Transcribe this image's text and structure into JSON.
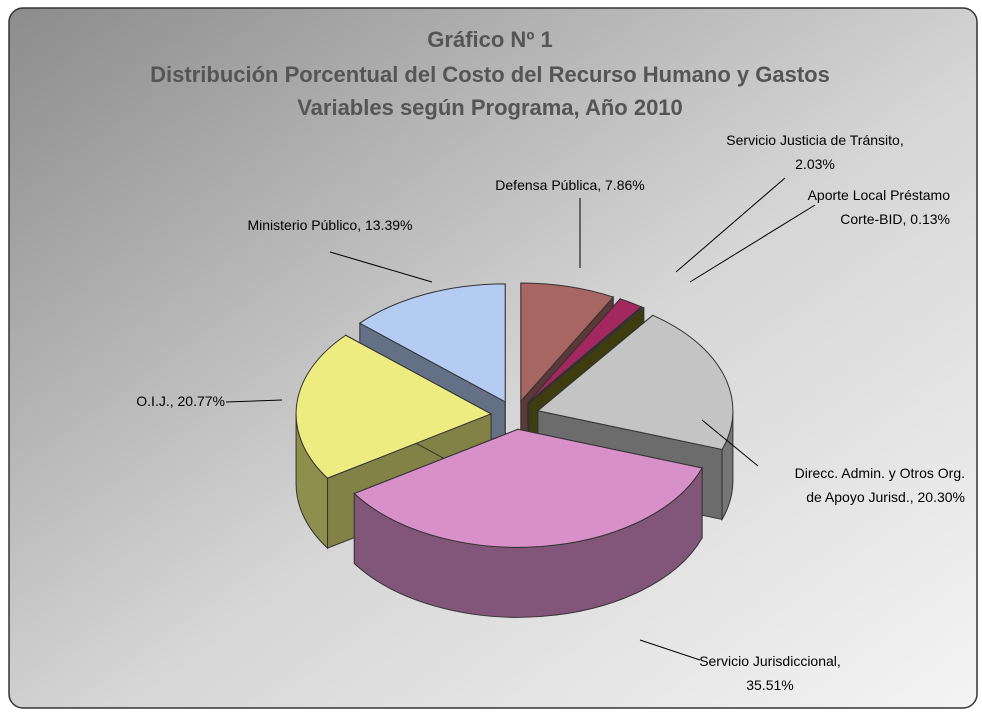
{
  "chart_data": {
    "type": "pie",
    "title": [
      "Gráfico Nº 1",
      "Distribución Porcentual del Costo del Recurso Humano y Gastos",
      "Variables según Programa, Año 2010"
    ],
    "values": [
      7.86,
      2.03,
      0.13,
      20.3,
      35.51,
      20.77,
      13.39
    ],
    "data_labels": [
      [
        "Defensa Pública, 7.86%"
      ],
      [
        "Servicio Justicia de Tránsito,",
        "2.03%"
      ],
      [
        "Aporte Local Préstamo",
        "Corte-BID, 0.13%"
      ],
      [
        "Direcc. Admin. y Otros Org.",
        "de Apoyo Jurisd., 20.30%"
      ],
      [
        "Servicio Jurisdiccional,",
        "35.51%"
      ],
      [
        "O.I.J., 20.77%"
      ],
      [
        "Ministerio Público, 13.39%"
      ]
    ],
    "colors": [
      "#a86662",
      "#a3285f",
      "#6e6e1c",
      "#c4c4c4",
      "#d890c8",
      "#ecec80",
      "#b4ccf2"
    ]
  }
}
